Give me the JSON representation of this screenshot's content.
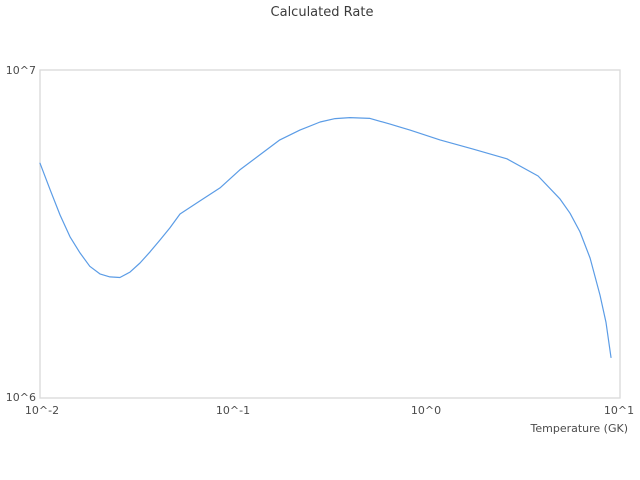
{
  "title": "Calculated Rate",
  "colors": {
    "line": "#5b9ce6",
    "border": "#d9d9d9",
    "background": "#ffffff",
    "title_text": "#3b3b3b",
    "tick_text": "#4b4b4b"
  },
  "chart_data": {
    "type": "line",
    "title": "Calculated Rate",
    "xlabel": "Temperature (GK)",
    "ylabel": "",
    "x_scale": "log",
    "y_scale": "log",
    "xlim": [
      0.01,
      10
    ],
    "ylim": [
      1000000,
      10000000
    ],
    "grid": false,
    "legend": "none",
    "x_ticks": [
      {
        "label": "10^-2",
        "value": 0.01
      },
      {
        "label": "10^-1",
        "value": 0.1
      },
      {
        "label": "10^0",
        "value": 1
      },
      {
        "label": "10^1",
        "value": 10
      }
    ],
    "y_ticks": [
      {
        "label": "10^6",
        "value": 1000000
      },
      {
        "label": "10^7",
        "value": 10000000
      }
    ],
    "series": [
      {
        "name": "Calculated Rate",
        "color": "#5b9ce6",
        "points": [
          [
            0.01,
            5200000
          ],
          [
            0.0113,
            4300000
          ],
          [
            0.0127,
            3610000
          ],
          [
            0.0143,
            3100000
          ],
          [
            0.0161,
            2770000
          ],
          [
            0.0181,
            2520000
          ],
          [
            0.0204,
            2390000
          ],
          [
            0.023,
            2340000
          ],
          [
            0.0259,
            2330000
          ],
          [
            0.0292,
            2420000
          ],
          [
            0.0329,
            2580000
          ],
          [
            0.0371,
            2790000
          ],
          [
            0.0417,
            3030000
          ],
          [
            0.047,
            3300000
          ],
          [
            0.053,
            3640000
          ],
          [
            0.0672,
            3990000
          ],
          [
            0.0853,
            4370000
          ],
          [
            0.108,
            4960000
          ],
          [
            0.137,
            5510000
          ],
          [
            0.174,
            6120000
          ],
          [
            0.221,
            6560000
          ],
          [
            0.281,
            6940000
          ],
          [
            0.336,
            7110000
          ],
          [
            0.401,
            7160000
          ],
          [
            0.509,
            7120000
          ],
          [
            0.646,
            6840000
          ],
          [
            0.82,
            6560000
          ],
          [
            1.172,
            6120000
          ],
          [
            1.737,
            5740000
          ],
          [
            2.6,
            5360000
          ],
          [
            3.77,
            4750000
          ],
          [
            4.9,
            4040000
          ],
          [
            5.51,
            3660000
          ],
          [
            6.21,
            3210000
          ],
          [
            7.0,
            2670000
          ],
          [
            7.88,
            2060000
          ],
          [
            8.46,
            1700000
          ],
          [
            8.98,
            1330000
          ]
        ]
      }
    ]
  }
}
